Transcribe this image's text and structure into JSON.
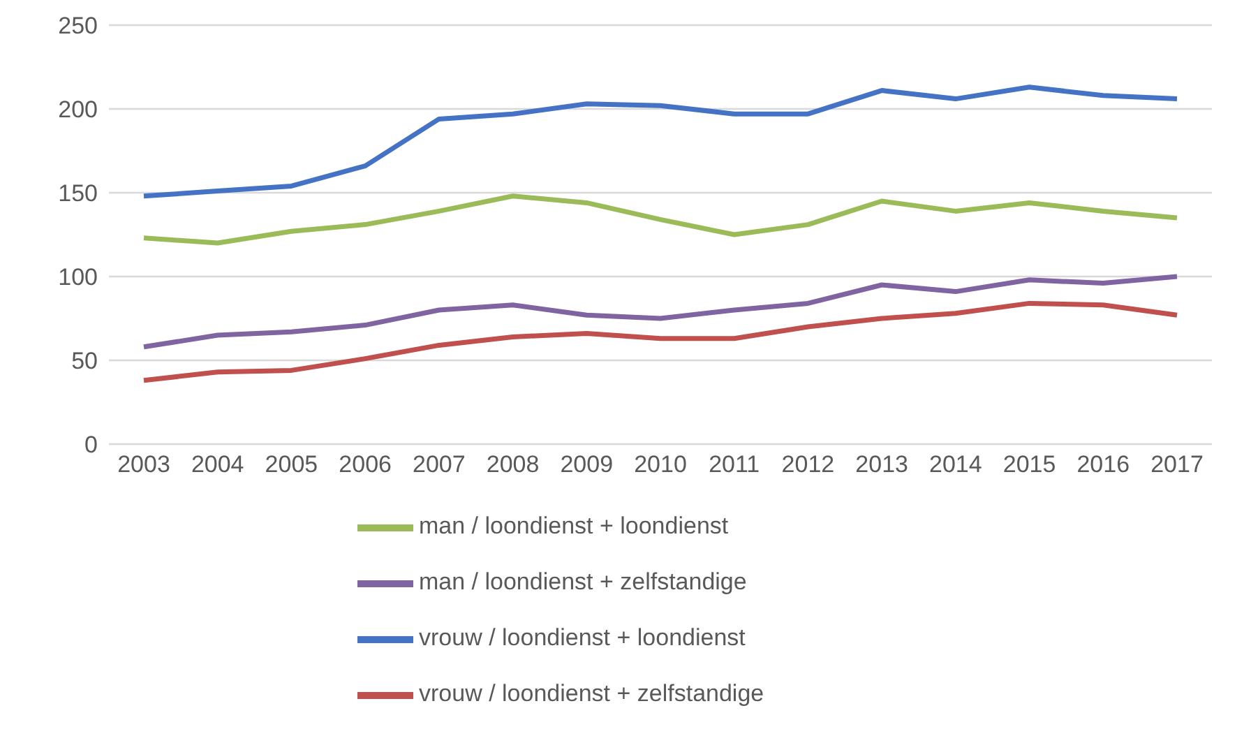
{
  "chart_data": {
    "type": "line",
    "categories": [
      "2003",
      "2004",
      "2005",
      "2006",
      "2007",
      "2008",
      "2009",
      "2010",
      "2011",
      "2012",
      "2013",
      "2014",
      "2015",
      "2016",
      "2017"
    ],
    "series": [
      {
        "name": "vrouw / loondienst + loondienst",
        "color": "#4472c4",
        "values": [
          148,
          151,
          154,
          166,
          194,
          197,
          203,
          202,
          197,
          197,
          211,
          206,
          213,
          208,
          206
        ]
      },
      {
        "name": "vrouw / loondienst + zelfstandige",
        "color": "#c0504d",
        "values": [
          38,
          43,
          44,
          51,
          59,
          64,
          66,
          63,
          63,
          70,
          75,
          78,
          84,
          83,
          77
        ]
      },
      {
        "name": "man / loondienst + loondienst",
        "color": "#9bbb59",
        "values": [
          123,
          120,
          127,
          131,
          139,
          148,
          144,
          134,
          125,
          131,
          145,
          139,
          144,
          139,
          135
        ]
      },
      {
        "name": "man / loondienst + zelfstandige",
        "color": "#8064a2",
        "values": [
          58,
          65,
          67,
          71,
          80,
          83,
          77,
          75,
          80,
          84,
          95,
          91,
          98,
          96,
          100
        ]
      }
    ],
    "ylim": [
      0,
      250
    ],
    "yticks": [
      0,
      50,
      100,
      150,
      200,
      250
    ],
    "grid": "y",
    "legend": "bottom",
    "marker": "none",
    "line_style": "solid"
  }
}
